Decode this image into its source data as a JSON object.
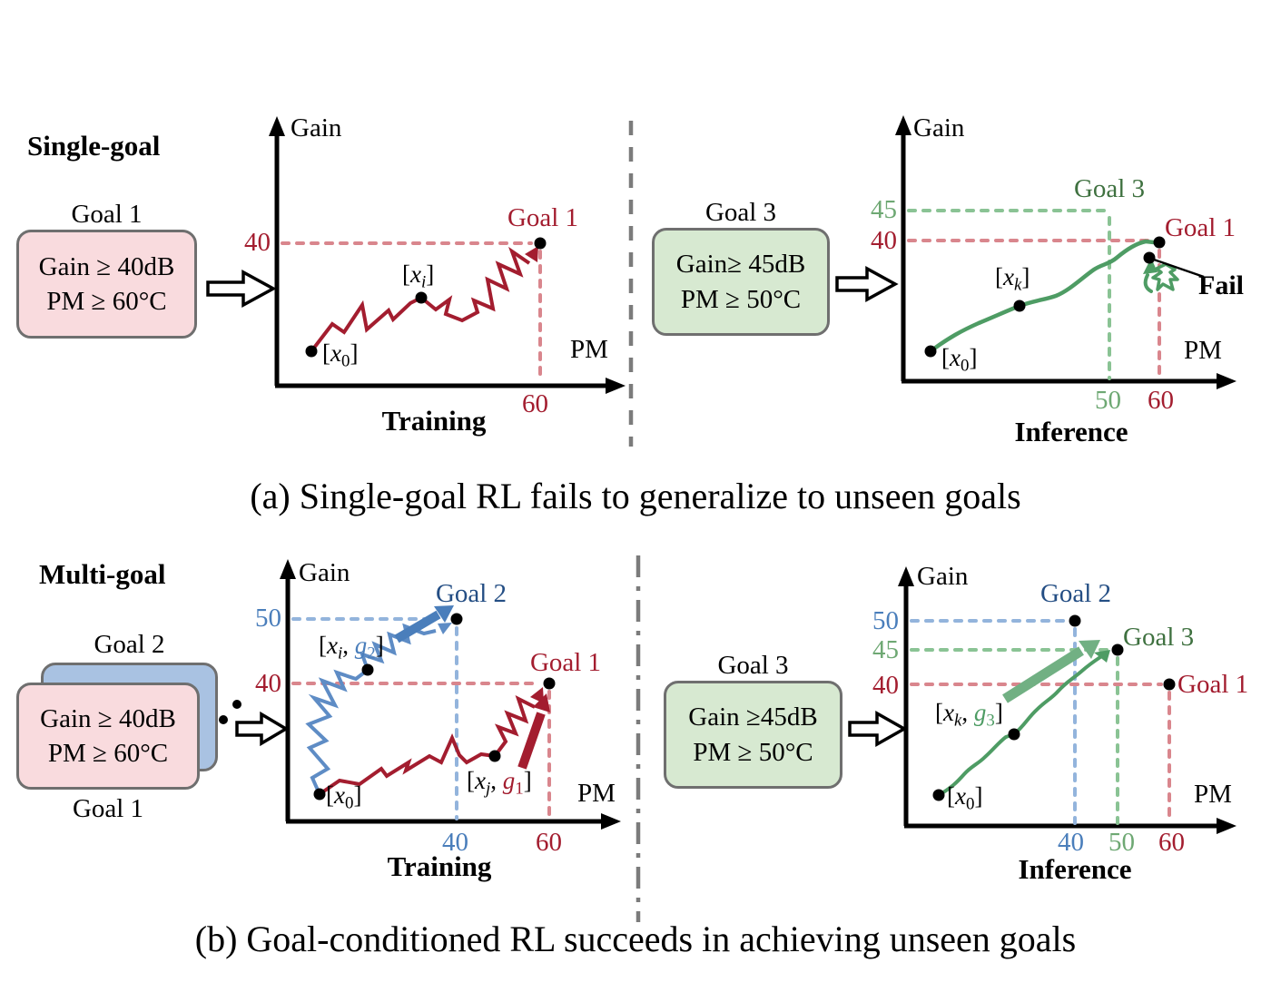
{
  "colors": {
    "red": "#A31D2F",
    "red_dash": "#D9868D",
    "blue_label": "#244E84",
    "blue": "#4A7EBB",
    "blue_traj": "#5E8CC5",
    "blue_dash": "#93B4DC",
    "green_traj": "#4E9C64",
    "green_label": "#3F7140",
    "green_tick": "#6EA873",
    "green_dash": "#8AC394",
    "green_arrow": "#71B083",
    "pink_fill": "#F9DBDE",
    "blue_fill": "#A9C2E2",
    "green_fill": "#D7E9D1",
    "box_border": "#6F6F6F",
    "divider": "#7B7B7B"
  },
  "a": {
    "heading": "Single-goal",
    "box1_title": "Goal 1",
    "box1_l1": "Gain ≥ 40dB",
    "box1_l2": "PM ≥ 60°C",
    "box3_title": "Goal 3",
    "box3_l1": "Gain≥ 45dB",
    "box3_l2": "PM ≥ 50°C",
    "t_gain": "Gain",
    "t_pm": "PM",
    "t_title": "Training",
    "t_y40": "40",
    "t_x60": "60",
    "t_goal1": "Goal 1",
    "i_gain": "Gain",
    "i_pm": "PM",
    "i_title": "Inference",
    "i_y45": "45",
    "i_y40": "40",
    "i_x50": "50",
    "i_x60": "60",
    "i_goal3": "Goal 3",
    "i_goal1": "Goal 1",
    "i_fail": "Fail",
    "caption": "(a) Single-goal RL fails to generalize to unseen goals"
  },
  "b": {
    "heading": "Multi-goal",
    "box2_title": "Goal 2",
    "box1_title": "Goal 1",
    "box_l1": "Gain ≥ 40dB",
    "box_l2": "PM ≥ 60°C",
    "box3_title": "Goal 3",
    "box3_l1": "Gain ≥45dB",
    "box3_l2": "PM ≥ 50°C",
    "t_gain": "Gain",
    "t_pm": "PM",
    "t_title": "Training",
    "t_y50": "50",
    "t_y40": "40",
    "t_x40": "40",
    "t_x60": "60",
    "t_goal2": "Goal 2",
    "t_goal1": "Goal 1",
    "i_gain": "Gain",
    "i_pm": "PM",
    "i_title": "Inference",
    "i_y50": "50",
    "i_y45": "45",
    "i_y40": "40",
    "i_x40": "40",
    "i_x50": "50",
    "i_x60": "60",
    "i_goal2": "Goal 2",
    "i_goal3": "Goal 3",
    "i_goal1": "Goal 1",
    "caption": "(b) Goal-conditioned RL succeeds in achieving unseen goals"
  },
  "math": {
    "x0": [
      {
        "t": "["
      },
      {
        "t": "x",
        "s": "i"
      },
      {
        "t": "0",
        "s": "sub"
      },
      {
        "t": "]"
      }
    ],
    "xi": [
      {
        "t": "["
      },
      {
        "t": "x",
        "s": "i"
      },
      {
        "t": "i",
        "s": "isub"
      },
      {
        "t": "]"
      }
    ],
    "xk": [
      {
        "t": "["
      },
      {
        "t": "x",
        "s": "i"
      },
      {
        "t": "k",
        "s": "isub"
      },
      {
        "t": "]"
      }
    ],
    "xi_g2": [
      {
        "t": "["
      },
      {
        "t": "x",
        "s": "i"
      },
      {
        "t": "i",
        "s": "isub"
      },
      {
        "t": ", "
      },
      {
        "t": "g",
        "s": "i",
        "c": "#4A7EBB"
      },
      {
        "t": "2",
        "s": "sub",
        "c": "#4A7EBB"
      },
      {
        "t": "]"
      }
    ],
    "xj_g1": [
      {
        "t": "["
      },
      {
        "t": "x",
        "s": "i"
      },
      {
        "t": "j",
        "s": "isub"
      },
      {
        "t": ", "
      },
      {
        "t": "g",
        "s": "i",
        "c": "#A31D2F"
      },
      {
        "t": "1",
        "s": "sub",
        "c": "#A31D2F"
      },
      {
        "t": "]"
      }
    ],
    "xk_g3": [
      {
        "t": "["
      },
      {
        "t": "x",
        "s": "i"
      },
      {
        "t": "k",
        "s": "isub"
      },
      {
        "t": ", "
      },
      {
        "t": "g",
        "s": "i",
        "c": "#4E9C64"
      },
      {
        "t": "3",
        "s": "sub",
        "c": "#4E9C64"
      },
      {
        "t": "]"
      }
    ]
  }
}
